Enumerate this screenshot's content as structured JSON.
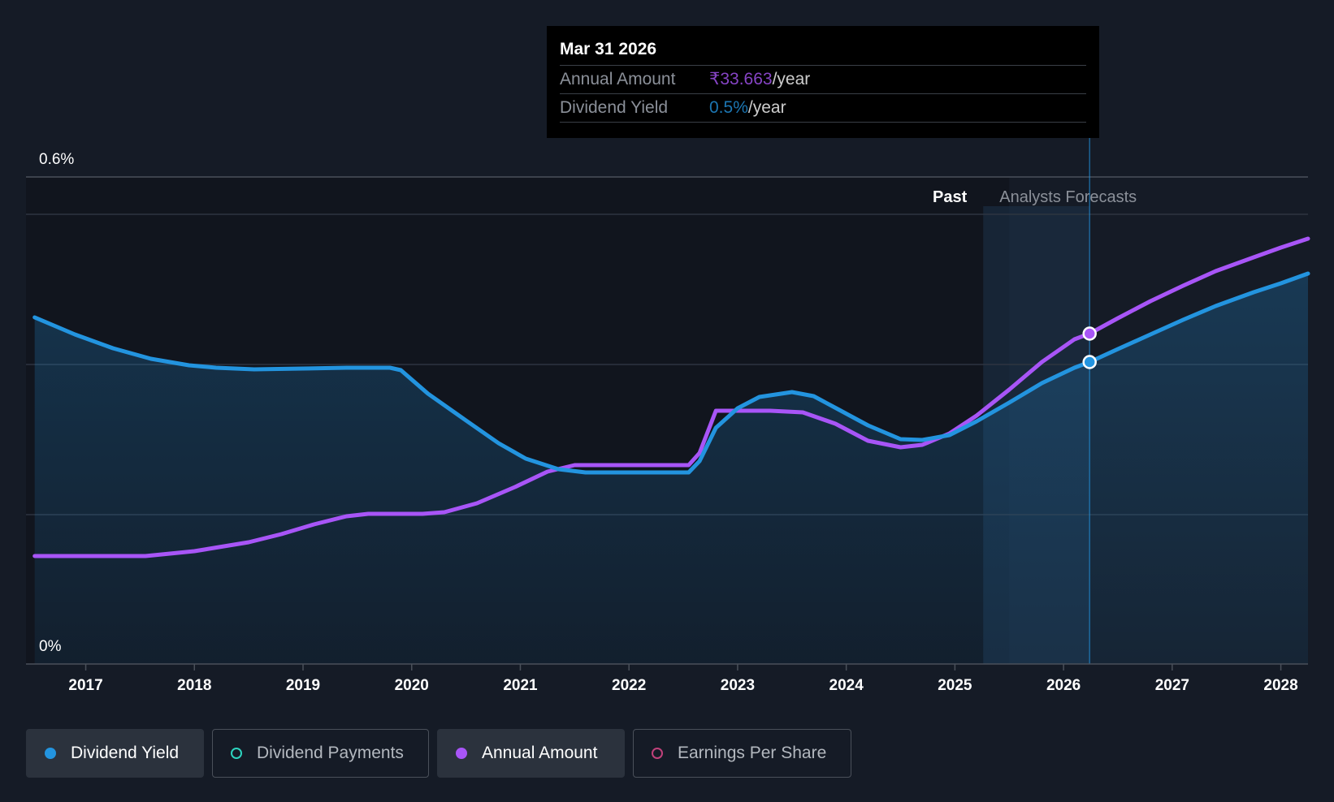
{
  "tooltip": {
    "date": "Mar 31 2026",
    "rows": [
      {
        "key": "Annual Amount",
        "value": "₹33.663",
        "suffix": "/year"
      },
      {
        "key": "Dividend Yield",
        "value": "0.5%",
        "suffix": "/year"
      }
    ]
  },
  "legend": [
    {
      "label": "Dividend Yield",
      "color": "#2394df",
      "active": true
    },
    {
      "label": "Dividend Payments",
      "color": "#2dd4bf",
      "active": false
    },
    {
      "label": "Annual Amount",
      "color": "#a855f7",
      "active": true
    },
    {
      "label": "Earnings Per Share",
      "color": "#c0417a",
      "active": false
    }
  ],
  "regions": {
    "past_label": "Past",
    "forecast_label": "Analysts Forecasts"
  },
  "colors": {
    "background": "#151b26",
    "dividend_yield": "#2394df",
    "annual_amount": "#a855f7"
  },
  "chart_data": {
    "type": "line",
    "title": "",
    "xlabel": "",
    "ylabel": "",
    "xlim": [
      2016.45,
      2028.25
    ],
    "ylim": [
      0,
      0.6
    ],
    "x_ticks": [
      2017,
      2018,
      2019,
      2020,
      2021,
      2022,
      2023,
      2024,
      2025,
      2026,
      2027,
      2028
    ],
    "y_ticks": [
      {
        "value": 0.6,
        "label": "0.6%"
      },
      {
        "value": 0,
        "label": "0%"
      }
    ],
    "grid": true,
    "forecast_start": 2025.5,
    "tooltip_x": 2026.24,
    "series": [
      {
        "name": "Dividend Yield",
        "color": "#2394df",
        "filled": true,
        "points": [
          [
            2016.53,
            0.427
          ],
          [
            2016.9,
            0.406
          ],
          [
            2017.25,
            0.389
          ],
          [
            2017.6,
            0.376
          ],
          [
            2017.95,
            0.368
          ],
          [
            2018.2,
            0.365
          ],
          [
            2018.55,
            0.363
          ],
          [
            2019.0,
            0.364
          ],
          [
            2019.4,
            0.365
          ],
          [
            2019.8,
            0.365
          ],
          [
            2019.9,
            0.362
          ],
          [
            2020.15,
            0.333
          ],
          [
            2020.5,
            0.3
          ],
          [
            2020.8,
            0.272
          ],
          [
            2021.05,
            0.253
          ],
          [
            2021.35,
            0.24
          ],
          [
            2021.6,
            0.236
          ],
          [
            2022.0,
            0.236
          ],
          [
            2022.3,
            0.236
          ],
          [
            2022.55,
            0.236
          ],
          [
            2022.65,
            0.25
          ],
          [
            2022.8,
            0.291
          ],
          [
            2023.0,
            0.315
          ],
          [
            2023.2,
            0.329
          ],
          [
            2023.5,
            0.335
          ],
          [
            2023.7,
            0.33
          ],
          [
            2023.95,
            0.312
          ],
          [
            2024.2,
            0.294
          ],
          [
            2024.5,
            0.277
          ],
          [
            2024.7,
            0.276
          ],
          [
            2024.95,
            0.282
          ],
          [
            2025.2,
            0.299
          ],
          [
            2025.5,
            0.322
          ],
          [
            2025.8,
            0.346
          ],
          [
            2026.1,
            0.365
          ],
          [
            2026.24,
            0.372
          ],
          [
            2026.5,
            0.388
          ],
          [
            2026.8,
            0.406
          ],
          [
            2027.1,
            0.424
          ],
          [
            2027.4,
            0.441
          ],
          [
            2027.75,
            0.458
          ],
          [
            2028.0,
            0.469
          ],
          [
            2028.25,
            0.481
          ]
        ]
      },
      {
        "name": "Annual Amount",
        "color": "#a855f7",
        "filled": false,
        "points": [
          [
            2016.53,
            0.133
          ],
          [
            2017.0,
            0.133
          ],
          [
            2017.55,
            0.133
          ],
          [
            2018.0,
            0.139
          ],
          [
            2018.5,
            0.15
          ],
          [
            2018.8,
            0.16
          ],
          [
            2019.1,
            0.172
          ],
          [
            2019.4,
            0.182
          ],
          [
            2019.6,
            0.185
          ],
          [
            2019.8,
            0.185
          ],
          [
            2020.1,
            0.185
          ],
          [
            2020.3,
            0.187
          ],
          [
            2020.6,
            0.198
          ],
          [
            2020.95,
            0.218
          ],
          [
            2021.25,
            0.237
          ],
          [
            2021.5,
            0.245
          ],
          [
            2022.0,
            0.245
          ],
          [
            2022.3,
            0.245
          ],
          [
            2022.55,
            0.245
          ],
          [
            2022.65,
            0.26
          ],
          [
            2022.8,
            0.312
          ],
          [
            2023.0,
            0.312
          ],
          [
            2023.3,
            0.312
          ],
          [
            2023.6,
            0.31
          ],
          [
            2023.9,
            0.296
          ],
          [
            2024.2,
            0.275
          ],
          [
            2024.5,
            0.267
          ],
          [
            2024.7,
            0.27
          ],
          [
            2024.95,
            0.284
          ],
          [
            2025.2,
            0.306
          ],
          [
            2025.5,
            0.338
          ],
          [
            2025.8,
            0.372
          ],
          [
            2026.1,
            0.4
          ],
          [
            2026.24,
            0.407
          ],
          [
            2026.5,
            0.426
          ],
          [
            2026.8,
            0.447
          ],
          [
            2027.1,
            0.466
          ],
          [
            2027.4,
            0.484
          ],
          [
            2027.75,
            0.501
          ],
          [
            2028.0,
            0.513
          ],
          [
            2028.25,
            0.524
          ]
        ]
      }
    ]
  }
}
